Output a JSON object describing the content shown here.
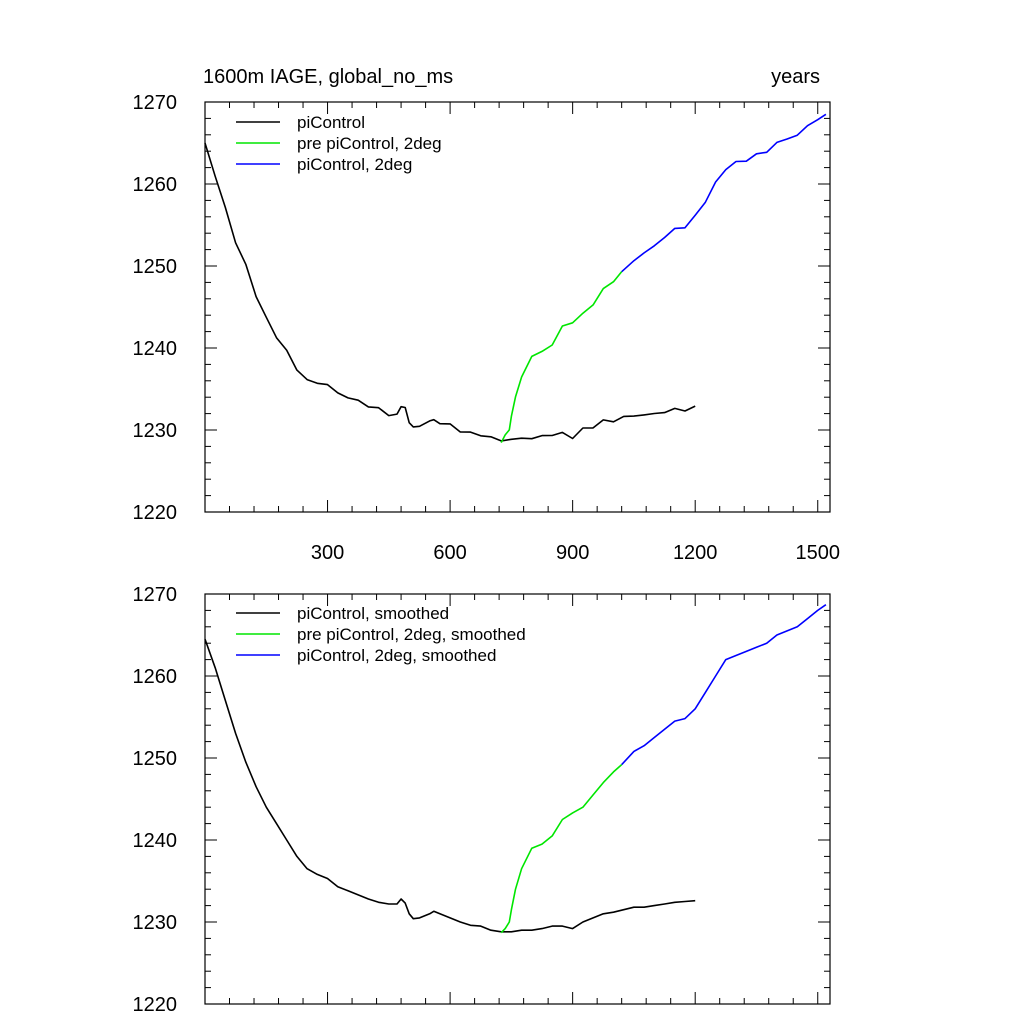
{
  "chart_data": [
    {
      "type": "line",
      "title_left": "1600m IAGE, global_no_ms",
      "title_right": "years",
      "xlim": [
        0,
        1530
      ],
      "ylim": [
        1220,
        1270
      ],
      "x_ticks": [
        300,
        600,
        900,
        1200,
        1500
      ],
      "x_tick_labels": [
        "300",
        "600",
        "900",
        "1200",
        "1500"
      ],
      "y_ticks": [
        1220,
        1230,
        1240,
        1250,
        1260,
        1270
      ],
      "y_tick_labels": [
        "1220",
        "1230",
        "1240",
        "1250",
        "1260",
        "1270"
      ],
      "legend": [
        "piControl",
        "pre piControl, 2deg",
        "piControl, 2deg"
      ],
      "series": [
        {
          "name": "piControl",
          "color": "#000000",
          "x": [
            0,
            25,
            50,
            75,
            100,
            125,
            150,
            175,
            200,
            225,
            250,
            275,
            300,
            325,
            350,
            375,
            400,
            425,
            450,
            470,
            480,
            490,
            500,
            510,
            525,
            550,
            560,
            575,
            600,
            625,
            650,
            675,
            700,
            725,
            750,
            775,
            800,
            825,
            850,
            875,
            900,
            925,
            950,
            975,
            1000,
            1025,
            1050,
            1075,
            1100,
            1125,
            1150,
            1175,
            1200
          ],
          "y": [
            1265,
            1261,
            1257,
            1253,
            1250,
            1246.5,
            1243.5,
            1241.5,
            1239.5,
            1237.5,
            1236,
            1235.8,
            1235.5,
            1234.5,
            1234,
            1233.5,
            1233,
            1232.5,
            1232,
            1232,
            1233,
            1232.5,
            1231,
            1230.5,
            1230.5,
            1231,
            1231.5,
            1231,
            1230.5,
            1230,
            1229.5,
            1229.5,
            1229,
            1228.8,
            1228.8,
            1229,
            1229,
            1229.2,
            1229.5,
            1229.5,
            1229.2,
            1230,
            1230.5,
            1231,
            1231.2,
            1231.5,
            1231.8,
            1231.8,
            1232,
            1232.2,
            1232.5,
            1232.5,
            1232.7
          ]
        },
        {
          "name": "pre piControl, 2deg",
          "color": "#00e600",
          "x": [
            725,
            735,
            745,
            750,
            760,
            775,
            800,
            825,
            850,
            875,
            900,
            925,
            950,
            975,
            1000,
            1020
          ],
          "y": [
            1228.7,
            1229.2,
            1230,
            1231.5,
            1234,
            1236.5,
            1239,
            1239.5,
            1240.5,
            1242.5,
            1243.3,
            1244,
            1245.5,
            1247,
            1248.3,
            1249.2
          ]
        },
        {
          "name": "piControl, 2deg",
          "color": "#0000ff",
          "x": [
            1020,
            1050,
            1075,
            1100,
            1125,
            1150,
            1175,
            1200,
            1225,
            1250,
            1275,
            1300,
            1325,
            1350,
            1375,
            1400,
            1425,
            1450,
            1475,
            1500,
            1520
          ],
          "y": [
            1249.2,
            1250.8,
            1251.5,
            1252.5,
            1253.5,
            1254.5,
            1254.8,
            1256,
            1258,
            1260,
            1262,
            1262.5,
            1263,
            1263.5,
            1264,
            1265,
            1265.5,
            1266,
            1267,
            1268,
            1268.7
          ]
        }
      ]
    },
    {
      "type": "line",
      "xlim": [
        0,
        1530
      ],
      "ylim": [
        1220,
        1270
      ],
      "x_ticks": [
        300,
        600,
        900,
        1200,
        1500
      ],
      "y_ticks": [
        1220,
        1230,
        1240,
        1250,
        1260,
        1270
      ],
      "y_tick_labels": [
        "1220",
        "1230",
        "1240",
        "1250",
        "1260",
        "1270"
      ],
      "legend": [
        "piControl, smoothed",
        "pre piControl, 2deg, smoothed",
        "piControl, 2deg, smoothed"
      ],
      "series": [
        {
          "name": "piControl, smoothed",
          "color": "#000000",
          "x": [
            0,
            25,
            50,
            75,
            100,
            125,
            150,
            175,
            200,
            225,
            250,
            275,
            300,
            325,
            350,
            375,
            400,
            425,
            450,
            470,
            480,
            490,
            500,
            510,
            525,
            550,
            560,
            575,
            600,
            625,
            650,
            675,
            700,
            725,
            750,
            775,
            800,
            825,
            850,
            875,
            900,
            925,
            950,
            975,
            1000,
            1025,
            1050,
            1075,
            1100,
            1125,
            1150,
            1175,
            1200
          ],
          "y": [
            1264.5,
            1261,
            1257,
            1253,
            1249.5,
            1246.5,
            1244,
            1242,
            1240,
            1238,
            1236.5,
            1235.8,
            1235.3,
            1234.3,
            1233.8,
            1233.3,
            1232.8,
            1232.4,
            1232.2,
            1232.2,
            1232.8,
            1232.3,
            1231,
            1230.4,
            1230.5,
            1231,
            1231.3,
            1231,
            1230.5,
            1230,
            1229.6,
            1229.5,
            1229,
            1228.8,
            1228.8,
            1229,
            1229,
            1229.2,
            1229.5,
            1229.5,
            1229.2,
            1230,
            1230.5,
            1231,
            1231.2,
            1231.5,
            1231.8,
            1231.8,
            1232,
            1232.2,
            1232.4,
            1232.5,
            1232.6
          ]
        },
        {
          "name": "pre piControl, 2deg, smoothed",
          "color": "#00e600",
          "x": [
            725,
            735,
            745,
            750,
            760,
            775,
            800,
            825,
            850,
            875,
            900,
            925,
            950,
            975,
            1000,
            1020
          ],
          "y": [
            1228.7,
            1229.2,
            1230,
            1231.5,
            1234,
            1236.5,
            1239,
            1239.5,
            1240.5,
            1242.5,
            1243.3,
            1244,
            1245.5,
            1247,
            1248.3,
            1249.2
          ]
        },
        {
          "name": "piControl, 2deg, smoothed",
          "color": "#0000ff",
          "x": [
            1020,
            1050,
            1075,
            1100,
            1125,
            1150,
            1175,
            1200,
            1225,
            1250,
            1275,
            1300,
            1325,
            1350,
            1375,
            1400,
            1425,
            1450,
            1475,
            1500,
            1520
          ],
          "y": [
            1249.2,
            1250.8,
            1251.5,
            1252.5,
            1253.5,
            1254.5,
            1254.8,
            1256,
            1258,
            1260,
            1262,
            1262.5,
            1263,
            1263.5,
            1264,
            1265,
            1265.5,
            1266,
            1267,
            1268,
            1268.7
          ]
        }
      ]
    }
  ]
}
